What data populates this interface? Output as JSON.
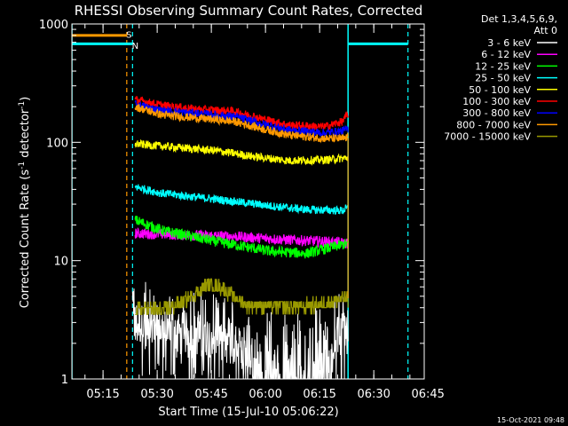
{
  "chart_data": {
    "type": "line",
    "title": "RHESSI Observing Summary Count Rates, Corrected",
    "ylabel_main": "Corrected Count Rate (s",
    "ylabel_sup1": "-1",
    "ylabel_mid": " detector",
    "ylabel_sup2": "-1",
    "ylabel_end": ")",
    "xlabel": "Start Time (15-Jul-10 05:06:22)",
    "yscale": "log",
    "ylim": [
      1,
      1000
    ],
    "xlim_minutes": [
      0,
      97.6
    ],
    "y_ticks": [
      {
        "value": 1,
        "label": "1"
      },
      {
        "value": 10,
        "label": "10"
      },
      {
        "value": 100,
        "label": "100"
      },
      {
        "value": 1000,
        "label": "1000"
      }
    ],
    "x_ticks": [
      {
        "value": 8.63,
        "label": "05:15"
      },
      {
        "value": 23.63,
        "label": "05:30"
      },
      {
        "value": 38.63,
        "label": "05:45"
      },
      {
        "value": 53.63,
        "label": "06:00"
      },
      {
        "value": 68.63,
        "label": "06:15"
      },
      {
        "value": 83.63,
        "label": "06:30"
      },
      {
        "value": 98.63,
        "label": "06:45"
      }
    ],
    "legend_header": [
      "Det 1,3,4,5,6,9,",
      "Att 0"
    ],
    "series": [
      {
        "name": "3 - 6 keV",
        "color": "#ffffff",
        "knots": [
          [
            16.8,
            3
          ],
          [
            28,
            2.5
          ],
          [
            40,
            2.3
          ],
          [
            50,
            1.6
          ],
          [
            60,
            1.5
          ],
          [
            70,
            2
          ],
          [
            76.5,
            2.6
          ]
        ]
      },
      {
        "name": "6 - 12 keV",
        "color": "#ff00ff",
        "knots": [
          [
            17.5,
            17
          ],
          [
            30,
            16.5
          ],
          [
            45,
            16
          ],
          [
            60,
            15
          ],
          [
            70,
            14.5
          ],
          [
            76.5,
            14
          ]
        ]
      },
      {
        "name": "12 - 25 keV",
        "color": "#00ff00",
        "knots": [
          [
            17.5,
            22
          ],
          [
            25,
            18
          ],
          [
            40,
            14.5
          ],
          [
            55,
            12
          ],
          [
            65,
            11.5
          ],
          [
            76.5,
            14
          ]
        ]
      },
      {
        "name": "25 - 50 keV",
        "color": "#00ffff",
        "knots": [
          [
            17.5,
            42
          ],
          [
            25,
            37
          ],
          [
            40,
            33
          ],
          [
            55,
            29
          ],
          [
            65,
            27
          ],
          [
            75,
            26.5
          ],
          [
            76.5,
            28
          ]
        ]
      },
      {
        "name": "50 - 100 keV",
        "color": "#ffff00",
        "knots": [
          [
            17.5,
            97
          ],
          [
            28,
            91
          ],
          [
            40,
            85
          ],
          [
            50,
            76
          ],
          [
            60,
            70
          ],
          [
            70,
            71
          ],
          [
            76.5,
            74
          ]
        ]
      },
      {
        "name": "100 - 300 keV",
        "color": "#ff0000",
        "knots": [
          [
            17.5,
            230
          ],
          [
            25,
            205
          ],
          [
            35,
            190
          ],
          [
            45,
            183
          ],
          [
            52,
            160
          ],
          [
            60,
            140
          ],
          [
            70,
            135
          ],
          [
            75,
            150
          ],
          [
            76.5,
            175
          ]
        ]
      },
      {
        "name": "300 - 800 keV",
        "color": "#0000ff",
        "knots": [
          [
            17.5,
            210
          ],
          [
            25,
            185
          ],
          [
            35,
            175
          ],
          [
            45,
            165
          ],
          [
            52,
            145
          ],
          [
            60,
            127
          ],
          [
            70,
            120
          ],
          [
            75,
            125
          ],
          [
            76.5,
            130
          ]
        ]
      },
      {
        "name": "800 - 7000 keV",
        "color": "#ff9900",
        "knots": [
          [
            17.5,
            200
          ],
          [
            25,
            170
          ],
          [
            35,
            160
          ],
          [
            45,
            150
          ],
          [
            52,
            132
          ],
          [
            60,
            115
          ],
          [
            70,
            108
          ],
          [
            75,
            107
          ],
          [
            76.5,
            110
          ]
        ]
      },
      {
        "name": "7000 - 15000 keV",
        "color": "#999900",
        "knots": [
          [
            17.5,
            3.9
          ],
          [
            25,
            3.8
          ],
          [
            30,
            4.3
          ],
          [
            35,
            5.5
          ],
          [
            38,
            6.4
          ],
          [
            42,
            5.8
          ],
          [
            48,
            4.2
          ],
          [
            60,
            4.1
          ],
          [
            68,
            4.2
          ],
          [
            76.5,
            4.8
          ]
        ]
      }
    ],
    "attenuator_lines": {
      "color_orange": "#ff9900",
      "color_cyan": "#00ffff",
      "solid_segments": [
        {
          "color": "#ff9900",
          "x0": 0,
          "x1": 15.2,
          "y": 800
        },
        {
          "color": "#00ffff",
          "x0": 0,
          "x1": 16.8,
          "y": 680
        },
        {
          "color": "#00ffff",
          "x0": 76.5,
          "x1": 93.1,
          "y": 680
        }
      ],
      "dashed_x": [
        {
          "color": "#ff9900",
          "x": 15.2
        },
        {
          "color": "#00ffff",
          "x": 16.8
        },
        {
          "color": "#00ffff",
          "x": 93.1
        }
      ],
      "solid_x": [
        {
          "color": "#00ffff",
          "x": 0
        },
        {
          "color": "#00ffff",
          "x": 76.5
        }
      ],
      "marks": [
        {
          "label": "S",
          "color": "#ff9900",
          "x": 16.0,
          "y": 820
        },
        {
          "label": "N",
          "color": "#00ffff",
          "x": 17.6,
          "y": 660
        }
      ]
    }
  },
  "footer_timestamp": "15-Oct-2021 09:48"
}
